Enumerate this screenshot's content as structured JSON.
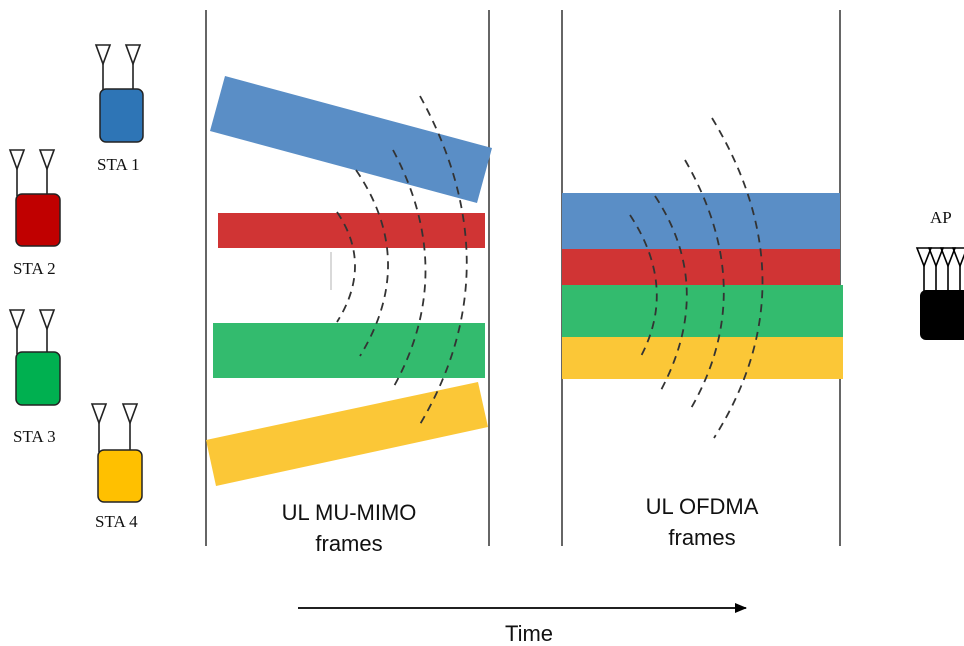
{
  "stations": [
    {
      "label": "STA 1",
      "color": "#2E75B6",
      "icon": "wifi-station-icon"
    },
    {
      "label": "STA 2",
      "color": "#C00000",
      "icon": "wifi-station-icon"
    },
    {
      "label": "STA 3",
      "color": "#00B050",
      "icon": "wifi-station-icon"
    },
    {
      "label": "STA 4",
      "color": "#FFC000",
      "icon": "wifi-station-icon"
    }
  ],
  "access_point": {
    "label": "AP",
    "color": "#000000",
    "icon": "access-point-icon"
  },
  "frame_colors": {
    "blue": "#5A8EC6",
    "red": "#D03434",
    "green": "#33BB6E",
    "yellow": "#FBC737"
  },
  "panels": {
    "mimo": {
      "line1": "UL MU-MIMO",
      "line2": "frames"
    },
    "ofdma": {
      "line1": "UL OFDMA",
      "line2": "frames"
    }
  },
  "time_axis": {
    "label": "Time"
  }
}
